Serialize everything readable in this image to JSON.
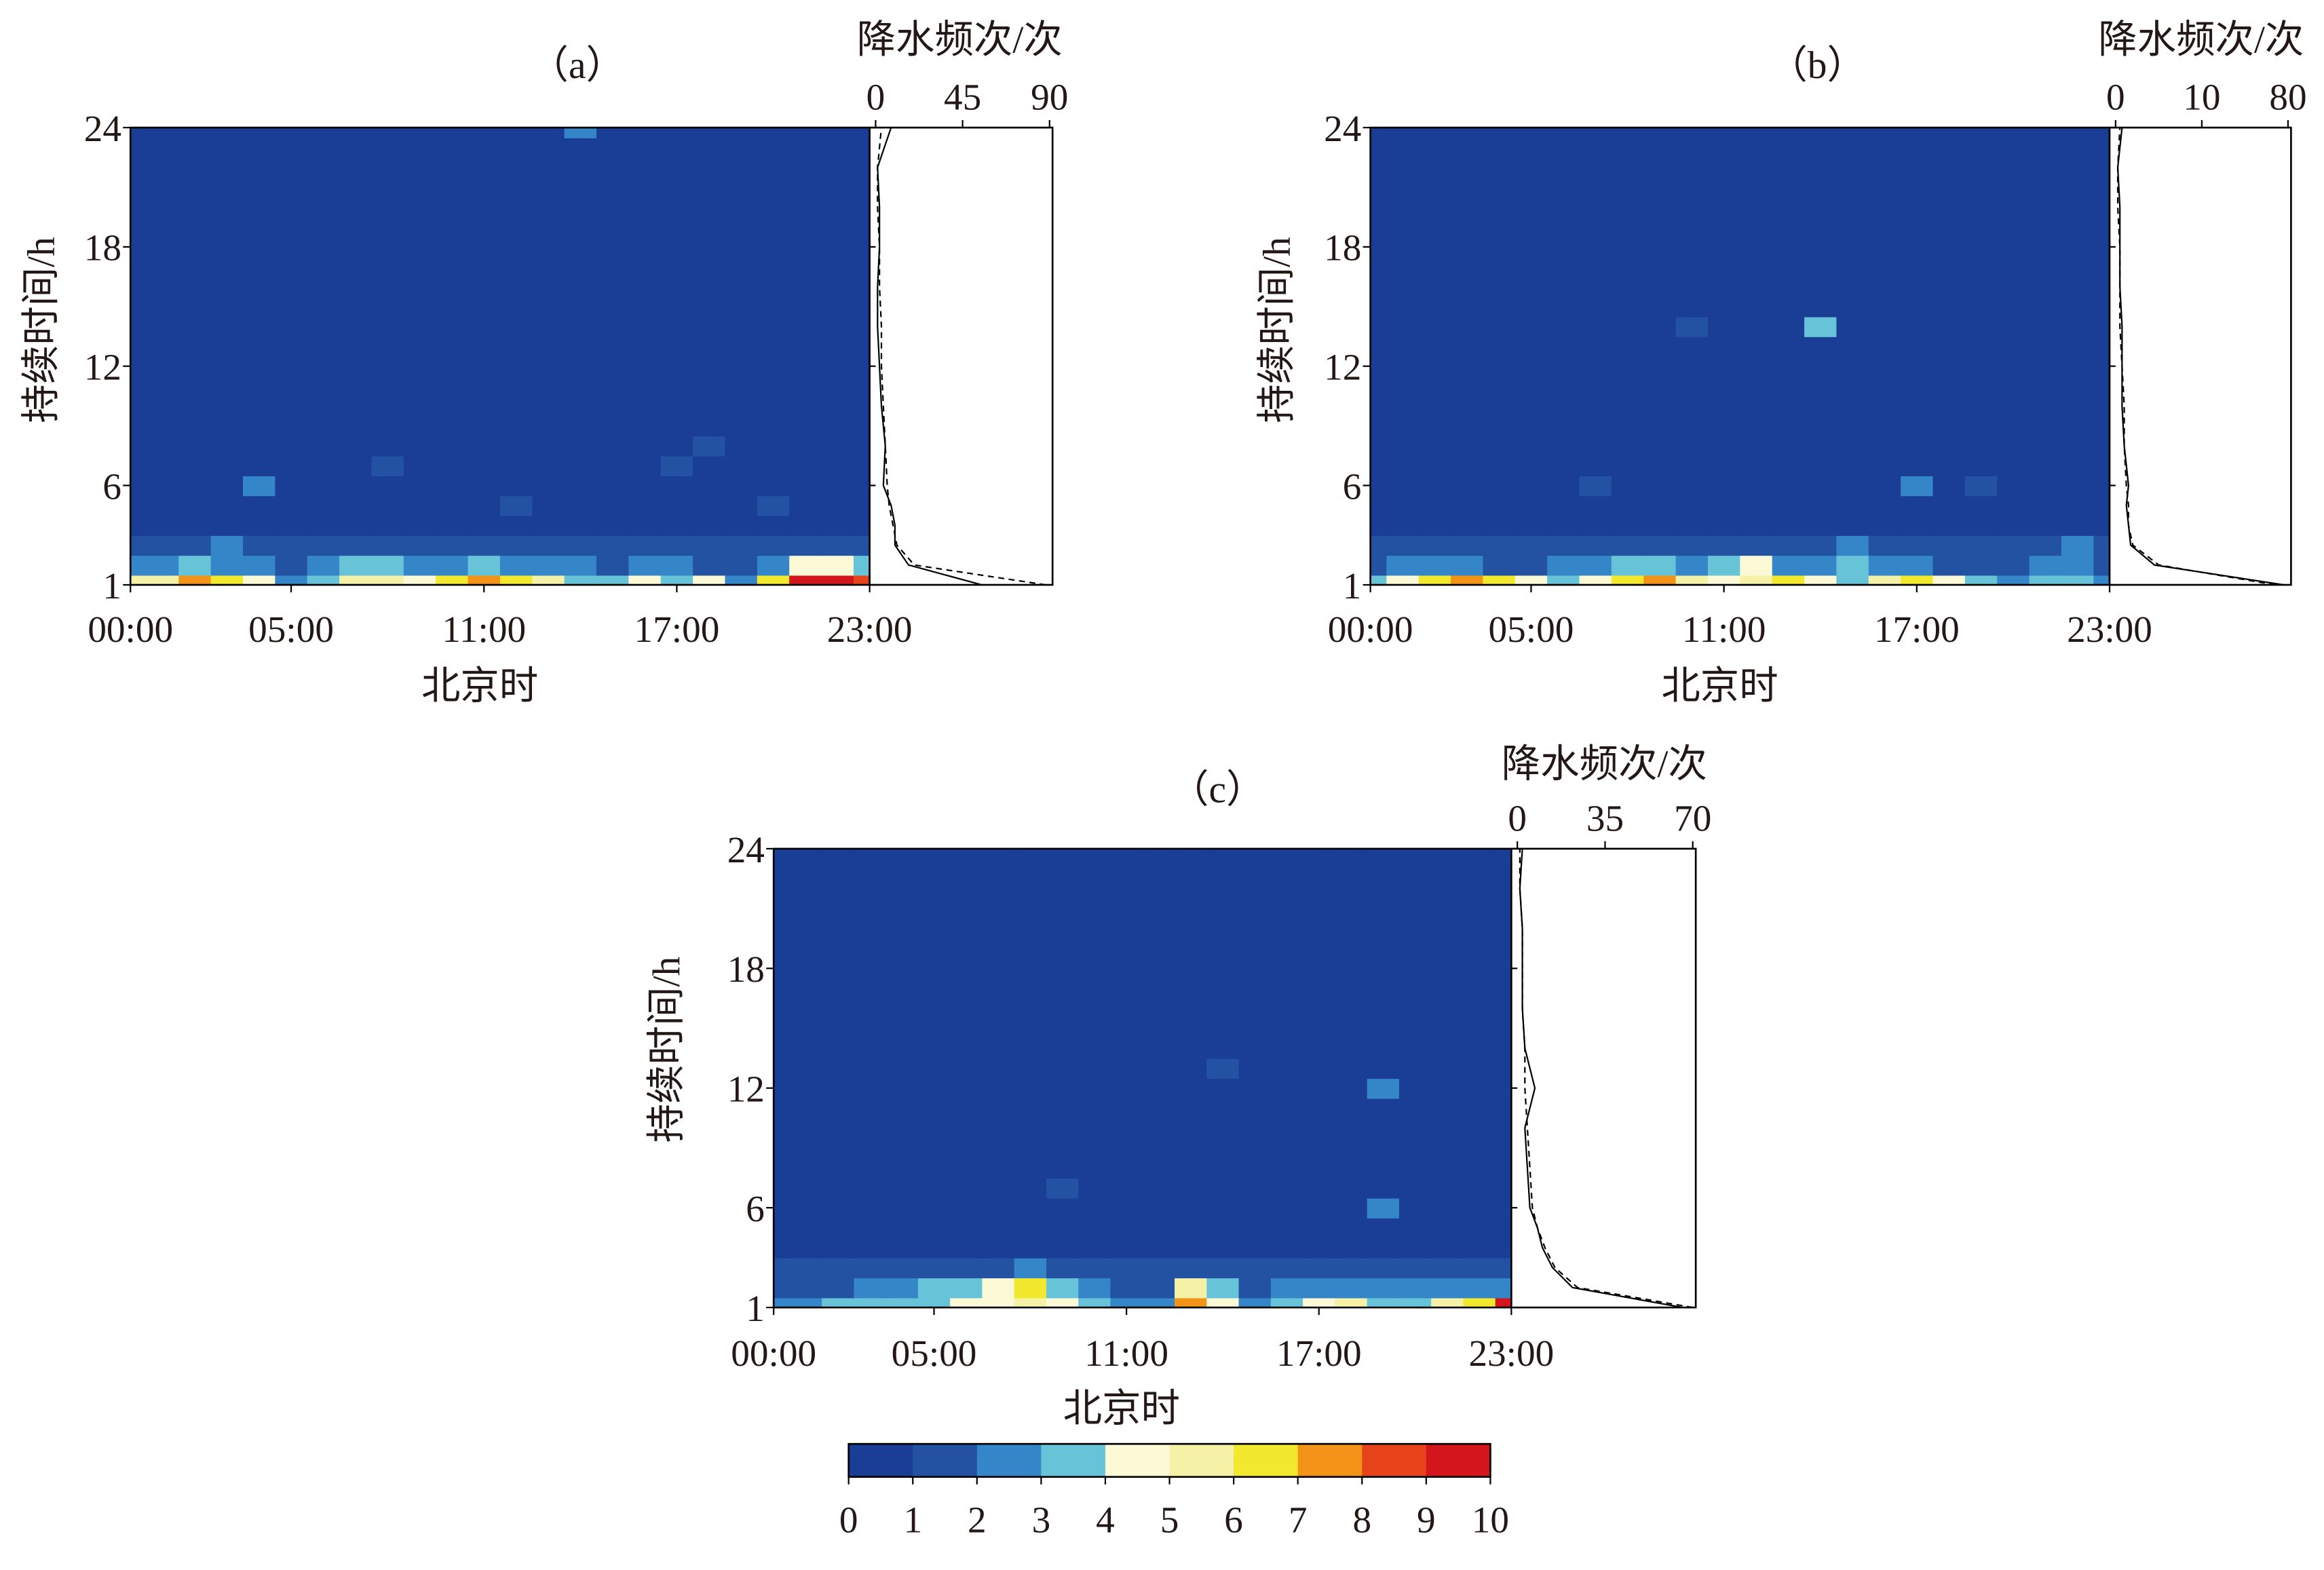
{
  "chart_data": {
    "type": "heatmap",
    "colorbar": {
      "levels": [
        0,
        1,
        2,
        3,
        4,
        5,
        6,
        7,
        8,
        9,
        10
      ],
      "tick_labels": [
        "0",
        "1",
        "2",
        "3",
        "4",
        "5",
        "6",
        "7",
        "8",
        "9",
        "10"
      ],
      "colors": [
        "#1a3d96",
        "#2452a3",
        "#3586c8",
        "#67c4d8",
        "#fcf9d6",
        "#f5f2a8",
        "#f2e92e",
        "#f39418",
        "#e8441c",
        "#d3161c"
      ]
    },
    "panels": [
      {
        "title": "（a）",
        "xlabel": "北京时",
        "ylabel": "持续时间/h",
        "x_tick_labels": [
          "00:00",
          "05:00",
          "11:00",
          "17:00",
          "23:00"
        ],
        "x_tick_hours": [
          0,
          5,
          11,
          17,
          23
        ],
        "y_tick_labels": [
          "24",
          "18",
          "12",
          "6",
          "1"
        ],
        "y_tick_values": [
          24,
          18,
          12,
          6,
          1
        ],
        "background_level": 0.5,
        "rows": {
          "1": [
            5,
            5,
            7,
            6,
            4,
            2,
            3,
            5,
            5,
            4,
            6,
            7,
            6,
            5,
            3,
            3,
            4,
            3,
            4,
            2,
            6,
            9.5,
            9,
            8
          ],
          "2": [
            2.5,
            2.5,
            3,
            2.5,
            2,
            1.5,
            2,
            3,
            3,
            2.5,
            2.5,
            3,
            2.5,
            2,
            2,
            1.5,
            2,
            2,
            1.5,
            1.5,
            2.5,
            4,
            4,
            3
          ],
          "3": [
            1.5,
            1.5,
            1.5,
            2.5,
            1.5,
            1,
            1,
            1,
            1,
            1,
            1,
            1.5,
            1.5,
            1,
            1,
            1,
            1,
            1.5,
            1.5,
            1,
            1,
            1.5,
            1.5,
            1.5
          ]
        },
        "spots": [
          [
            4,
            6,
            2.5
          ],
          [
            8,
            7,
            1.5
          ],
          [
            12,
            5,
            1.5
          ],
          [
            17,
            7,
            1.5
          ],
          [
            18,
            8,
            1.5
          ],
          [
            20,
            5,
            1.5
          ],
          [
            14,
            24,
            2.5
          ]
        ],
        "profile": {
          "title": "降水频次/次",
          "tick_labels": [
            "0",
            "45",
            "90"
          ],
          "max": 90,
          "durations": [
            1,
            2,
            3,
            4,
            5,
            6,
            8,
            10,
            12,
            14,
            16,
            18,
            20,
            22,
            24
          ],
          "solid": [
            55,
            17,
            10,
            10,
            8,
            4,
            5,
            3,
            2,
            1,
            1,
            2,
            2,
            1,
            8
          ],
          "dashed": [
            88,
            20,
            11,
            9,
            7,
            6,
            5,
            4,
            3,
            3,
            2,
            2,
            1,
            1,
            3
          ]
        }
      },
      {
        "title": "（b）",
        "xlabel": "北京时",
        "ylabel": "持续时间/h",
        "x_tick_labels": [
          "00:00",
          "05:00",
          "11:00",
          "17:00",
          "23:00"
        ],
        "x_tick_hours": [
          0,
          5,
          11,
          17,
          23
        ],
        "y_tick_labels": [
          "24",
          "18",
          "12",
          "6",
          "1"
        ],
        "y_tick_values": [
          24,
          18,
          12,
          6,
          1
        ],
        "background_level": 0.5,
        "rows": {
          "1": [
            3,
            4,
            6,
            7,
            6,
            4,
            3,
            4,
            6,
            7,
            5,
            4,
            5,
            6,
            4,
            3,
            5,
            6,
            4,
            3,
            2,
            3,
            3,
            2
          ],
          "2": [
            1.5,
            2,
            2.5,
            2,
            1.5,
            1.5,
            2,
            2,
            3,
            3,
            2,
            3,
            4,
            2.5,
            2,
            3,
            2.5,
            2,
            1.5,
            1.5,
            1.5,
            2,
            2,
            1.5
          ],
          "3": [
            1.5,
            1.5,
            1,
            1.5,
            1,
            1,
            1,
            1.5,
            1,
            1,
            1,
            1.5,
            1,
            1,
            1.5,
            2.5,
            1,
            1,
            1.5,
            1,
            1,
            1,
            2.5,
            1.5
          ]
        },
        "spots": [
          [
            7,
            6,
            1.5
          ],
          [
            14,
            14,
            3.5
          ],
          [
            17,
            6,
            2.5
          ],
          [
            10,
            14,
            1.5
          ],
          [
            19,
            6,
            1.5
          ]
        ],
        "profile": {
          "title": "降水频次/次",
          "tick_labels": [
            "0",
            "10",
            "80"
          ],
          "max": 80,
          "durations": [
            1,
            2,
            3,
            4,
            5,
            6,
            8,
            10,
            12,
            14,
            16,
            18,
            20,
            22,
            24
          ],
          "solid": [
            78,
            18,
            7,
            6,
            5,
            6,
            4,
            3,
            3,
            3,
            2,
            2,
            2,
            1,
            3
          ],
          "dashed": [
            74,
            20,
            8,
            6,
            6,
            5,
            4,
            4,
            3,
            2,
            2,
            2,
            1,
            1,
            2
          ]
        }
      },
      {
        "title": "（c）",
        "xlabel": "北京时",
        "ylabel": "持续时间/h",
        "x_tick_labels": [
          "00:00",
          "05:00",
          "11:00",
          "17:00",
          "23:00"
        ],
        "x_tick_hours": [
          0,
          5,
          11,
          17,
          23
        ],
        "y_tick_labels": [
          "24",
          "18",
          "12",
          "6",
          "1"
        ],
        "y_tick_values": [
          24,
          18,
          12,
          6,
          1
        ],
        "background_level": 0.5,
        "rows": {
          "1": [
            2.5,
            2.5,
            3,
            3.5,
            3,
            3,
            4,
            4,
            5,
            4,
            3,
            2,
            2,
            7,
            4,
            2,
            3,
            4,
            5,
            3,
            3,
            5,
            6,
            9
          ],
          "2": [
            1.5,
            1.5,
            1.5,
            2,
            2,
            3,
            3,
            4,
            6,
            3,
            2,
            1.5,
            1.5,
            5,
            3,
            1.5,
            2,
            2,
            2,
            2,
            2,
            2,
            2,
            2
          ],
          "3": [
            1,
            1,
            1,
            1.5,
            1.5,
            1.5,
            1.5,
            1.5,
            2.5,
            1.5,
            1,
            1,
            1,
            1.5,
            1.5,
            1,
            1,
            1.5,
            1.5,
            1,
            1.5,
            1.5,
            1.5,
            1.5
          ]
        },
        "spots": [
          [
            19,
            12,
            2.5
          ],
          [
            19,
            6,
            2.5
          ],
          [
            14,
            13,
            1.5
          ],
          [
            9,
            7,
            1.5
          ]
        ],
        "profile": {
          "title": "降水频次/次",
          "tick_labels": [
            "0",
            "35",
            "70"
          ],
          "max": 70,
          "durations": [
            1,
            2,
            3,
            4,
            5,
            6,
            8,
            10,
            12,
            14,
            16,
            18,
            20,
            22,
            24
          ],
          "solid": [
            66,
            22,
            14,
            10,
            8,
            5,
            4,
            3,
            7,
            3,
            2,
            2,
            2,
            1,
            2
          ],
          "dashed": [
            70,
            24,
            15,
            11,
            8,
            6,
            5,
            4,
            3,
            3,
            2,
            2,
            2,
            1,
            1
          ]
        }
      }
    ]
  }
}
